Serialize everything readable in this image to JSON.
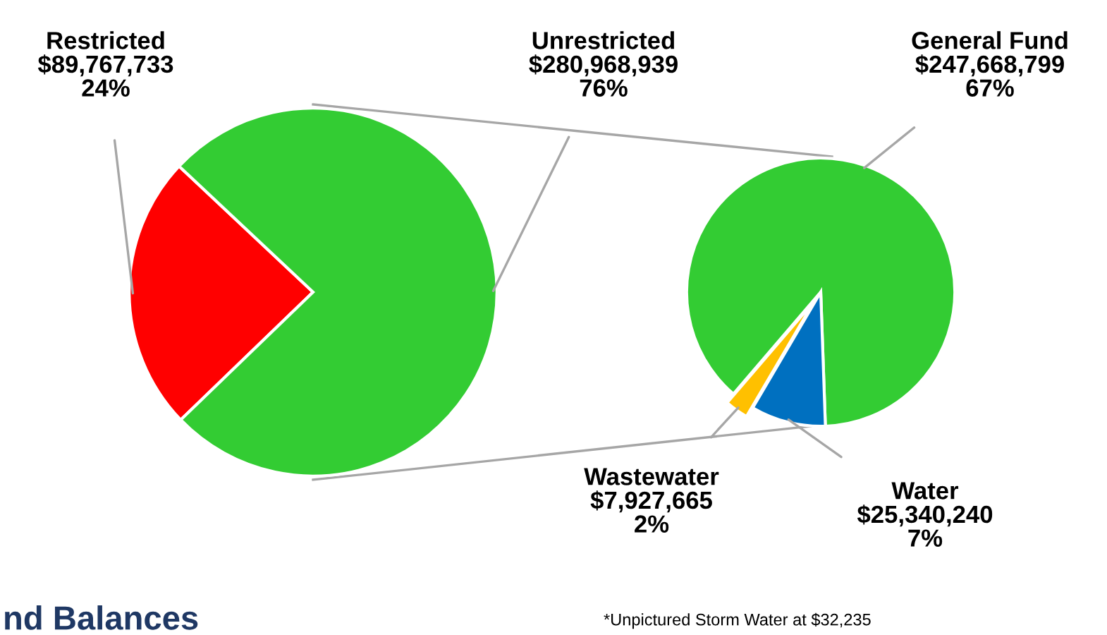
{
  "chart_data": [
    {
      "type": "pie",
      "categories": [
        "Restricted",
        "Unrestricted"
      ],
      "values": [
        89767733,
        280968939
      ],
      "colors": [
        "#ff0000",
        "#33cc33"
      ],
      "value_labels": [
        "$89,767,733\n24%",
        "$280,968,939\n76%"
      ],
      "annotations": [
        "nd Balances"
      ]
    },
    {
      "type": "pie",
      "categories": [
        "General Fund",
        "Wastewater",
        "Water"
      ],
      "values": [
        247668799,
        7927665,
        25340240
      ],
      "colors": [
        "#33cc33",
        "#ffc000",
        "#0070c0"
      ],
      "value_labels": [
        "$247,668,799\n67%",
        "$7,927,665\n2%",
        "$25,340,240\n7%"
      ],
      "annotations": [
        "*Unpictured Storm Water at $32,235"
      ]
    }
  ]
}
